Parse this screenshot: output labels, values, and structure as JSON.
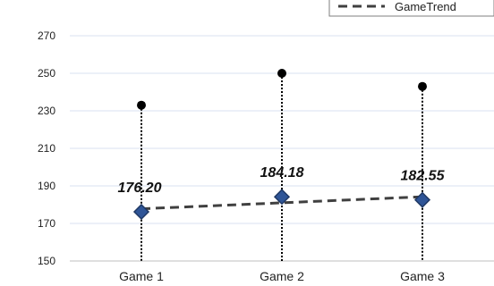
{
  "chart_data": {
    "type": "line",
    "title": "",
    "xlabel": "",
    "ylabel": "",
    "categories": [
      "Game 1",
      "Game 2",
      "Game 3"
    ],
    "ylim": [
      150,
      270
    ],
    "yticks": [
      150,
      170,
      190,
      210,
      230,
      250,
      270
    ],
    "grid": true,
    "legend": {
      "placement": "top-right",
      "entries": [
        "GameTrend"
      ]
    },
    "series": [
      {
        "role": "high",
        "values": [
          233,
          250,
          243
        ],
        "color": "#000000"
      },
      {
        "role": "marker",
        "values": [
          176.2,
          184.18,
          182.55
        ],
        "labels": [
          "176.20",
          "184.18",
          "182.55"
        ],
        "color": "#2f5597"
      },
      {
        "name": "GameTrend",
        "type": "trend",
        "values": [
          177.8,
          181.0,
          184.2
        ],
        "color": "#404040"
      }
    ]
  }
}
